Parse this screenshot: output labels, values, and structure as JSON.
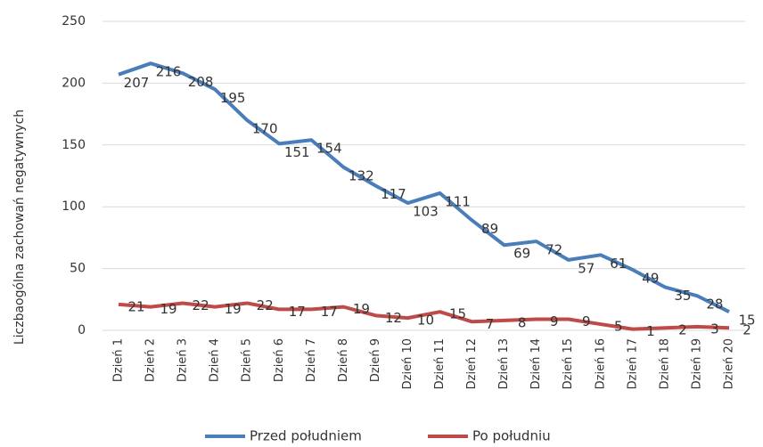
{
  "chart_data": {
    "type": "line",
    "y_label": "Liczbaogólna zachowań negatywnych",
    "categories": [
      "Dzień 1",
      "Dzień 2",
      "Dzień 3",
      "Dzień 4",
      "Dzień 5",
      "Dzień 6",
      "Dzień 7",
      "Dzień 8",
      "Dzień 9",
      "Dzień 10",
      "Dzień 11",
      "Dzień 12",
      "Dzień 13",
      "Dzień 14",
      "Dzień 15",
      "Dzień 16",
      "Dzień 17",
      "Dzień 18",
      "Dzień 19",
      "Dzień 20"
    ],
    "series": [
      {
        "name": "Przed południem",
        "color": "#4a7ebb",
        "values": [
          207,
          216,
          208,
          195,
          170,
          151,
          154,
          132,
          117,
          103,
          111,
          89,
          69,
          72,
          57,
          61,
          49,
          35,
          28,
          15
        ]
      },
      {
        "name": "Po południu",
        "color": "#be4b48",
        "values": [
          21,
          19,
          22,
          19,
          22,
          17,
          17,
          19,
          12,
          10,
          15,
          7,
          8,
          9,
          9,
          5,
          1,
          2,
          3,
          2
        ]
      }
    ],
    "ylim": [
      0,
      250
    ],
    "yticks": [
      0,
      50,
      100,
      150,
      200,
      250
    ],
    "grid": true,
    "legend": "bottom"
  }
}
